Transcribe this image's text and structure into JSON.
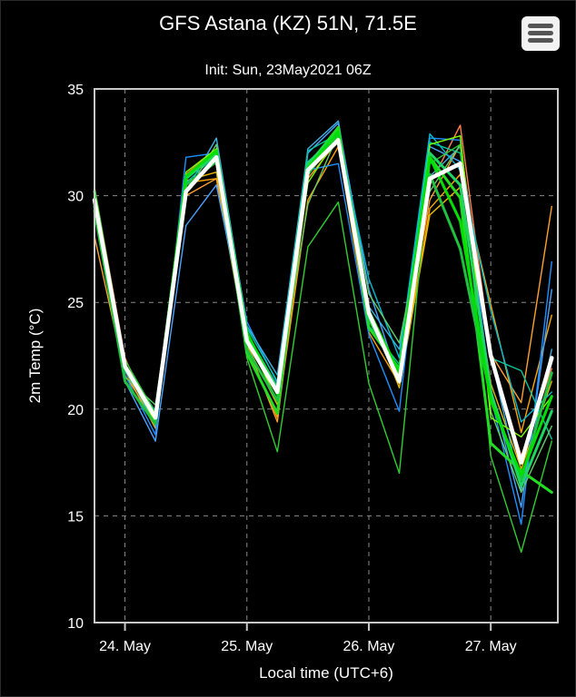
{
  "chart_data": {
    "type": "line",
    "title": "GFS Astana (KZ) 51N, 71.5E",
    "subtitle": "Init: Sun, 23May2021 06Z",
    "xlabel": "Local time (UTC+6)",
    "ylabel": "2m Temp (°C)",
    "ylim": [
      10,
      35
    ],
    "yticks": [
      10,
      15,
      20,
      25,
      30,
      35
    ],
    "xlim": [
      -0.25,
      3.55
    ],
    "xticks": [
      {
        "value": 0,
        "label": "24. May"
      },
      {
        "value": 1,
        "label": "25. May"
      },
      {
        "value": 2,
        "label": "26. May"
      },
      {
        "value": 3,
        "label": "27. May"
      }
    ],
    "grid": true,
    "x": [
      -0.25,
      0,
      0.25,
      0.5,
      0.75,
      1,
      1.25,
      1.5,
      1.75,
      2,
      2.25,
      2.5,
      2.75,
      3,
      3.25,
      3.5
    ],
    "mean": {
      "color": "#ffffff",
      "values": [
        29.8,
        22.0,
        19.6,
        30.2,
        31.8,
        23.2,
        20.8,
        31.2,
        32.6,
        24.5,
        21.3,
        30.8,
        31.5,
        22.5,
        17.5,
        22.4
      ]
    },
    "members": [
      {
        "color": "#ff7f50",
        "values": [
          30.4,
          22.4,
          19.2,
          31.0,
          32.2,
          23.6,
          20.9,
          31.0,
          33.1,
          24.4,
          21.6,
          30.5,
          33.3,
          22.6,
          17.8,
          21.9
        ]
      },
      {
        "color": "#ffa500",
        "values": [
          29.2,
          21.8,
          19.1,
          30.6,
          30.8,
          22.9,
          19.6,
          29.8,
          32.3,
          23.6,
          21.2,
          29.4,
          31.0,
          24.9,
          18.9,
          24.4
        ]
      },
      {
        "color": "#ffa030",
        "values": [
          28.1,
          21.6,
          19.4,
          30.0,
          30.8,
          23.0,
          19.4,
          30.8,
          32.6,
          24.3,
          21.8,
          29.8,
          32.4,
          22.6,
          20.3,
          29.5
        ]
      },
      {
        "color": "#e6b800",
        "values": [
          29.6,
          22.1,
          19.8,
          30.7,
          31.1,
          23.0,
          20.2,
          31.1,
          32.5,
          24.6,
          21.0,
          29.1,
          30.4,
          21.2,
          17.2,
          21.3
        ]
      },
      {
        "color": "#4aa3ff",
        "values": [
          29.7,
          21.3,
          18.5,
          28.6,
          30.5,
          23.4,
          21.0,
          32.0,
          33.4,
          25.6,
          21.3,
          32.3,
          31.6,
          21.0,
          15.4,
          25.6
        ]
      },
      {
        "color": "#1e90ff",
        "values": [
          29.4,
          21.6,
          18.8,
          31.8,
          32.0,
          24.1,
          21.2,
          31.2,
          31.5,
          23.5,
          19.9,
          32.7,
          32.6,
          20.6,
          14.6,
          26.9
        ]
      },
      {
        "color": "#3fb0e0",
        "values": [
          29.9,
          22.0,
          19.2,
          30.2,
          32.7,
          23.9,
          21.6,
          32.2,
          33.5,
          24.8,
          22.8,
          30.9,
          32.3,
          22.5,
          16.2,
          22.8
        ]
      },
      {
        "color": "#00bcd4",
        "values": [
          29.5,
          21.8,
          19.5,
          30.3,
          31.7,
          23.3,
          21.0,
          31.6,
          32.8,
          26.1,
          22.4,
          32.9,
          31.2,
          24.6,
          19.4,
          20.8
        ]
      },
      {
        "color": "#00c8a0",
        "values": [
          29.5,
          22.1,
          19.9,
          30.6,
          31.9,
          23.8,
          21.3,
          32.1,
          32.9,
          23.9,
          22.1,
          32.5,
          32.0,
          22.4,
          21.8,
          18.6
        ]
      },
      {
        "color": "#66cc66",
        "values": [
          29.9,
          21.5,
          20.2,
          30.1,
          32.4,
          23.1,
          20.8,
          29.6,
          32.9,
          25.4,
          23.1,
          30.2,
          32.4,
          19.9,
          16.1,
          19.2
        ]
      },
      {
        "color": "#32cd32",
        "values": [
          29.6,
          22.3,
          19.8,
          30.8,
          31.9,
          22.4,
          18.0,
          27.6,
          29.7,
          21.2,
          17.0,
          31.5,
          32.4,
          17.8,
          13.3,
          18.5
        ]
      },
      {
        "color": "#7cfc00",
        "values": [
          29.8,
          21.9,
          19.4,
          31.1,
          32.2,
          23.3,
          20.4,
          30.6,
          32.8,
          24.6,
          21.5,
          32.4,
          32.8,
          19.6,
          18.7,
          20.6
        ]
      },
      {
        "color": "#22dd22",
        "values": [
          30.2,
          22.0,
          19.6,
          30.9,
          32.1,
          22.6,
          19.8,
          31.4,
          33.2,
          23.8,
          21.9,
          31.8,
          29.9,
          18.4,
          17.1,
          16.1
        ]
      },
      {
        "color": "#20c040",
        "values": [
          29.3,
          21.3,
          19.3,
          30.5,
          31.6,
          22.8,
          20.4,
          31.0,
          32.9,
          24.2,
          21.5,
          31.0,
          27.5,
          20.5,
          16.7,
          21.7
        ]
      },
      {
        "color": "#1ed760",
        "values": [
          29.5,
          21.9,
          19.7,
          30.8,
          32.0,
          23.5,
          21.0,
          31.5,
          33.0,
          24.3,
          21.8,
          32.0,
          30.5,
          20.8,
          16.4,
          19.9
        ]
      },
      {
        "color": "#00e000",
        "values": [
          29.5,
          22.0,
          19.6,
          30.9,
          32.1,
          23.6,
          20.7,
          31.3,
          33.0,
          24.6,
          21.7,
          31.8,
          28.8,
          20.4,
          16.9,
          20.6
        ]
      }
    ]
  }
}
